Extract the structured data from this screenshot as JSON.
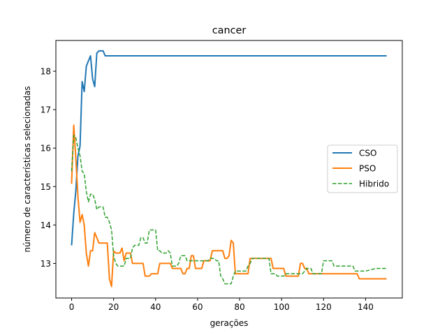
{
  "chart_data": {
    "type": "line",
    "title": "cancer",
    "xlabel": "gerações",
    "ylabel": "número de características selecionadas",
    "xlim": [
      -7.5,
      157.5
    ],
    "ylim": [
      12.1,
      18.8
    ],
    "xticks": [
      0,
      20,
      40,
      60,
      80,
      100,
      120,
      140
    ],
    "yticks": [
      13,
      14,
      15,
      16,
      17,
      18
    ],
    "grid": false,
    "legend_position": "center-right",
    "series": [
      {
        "name": "CSO",
        "color": "#1f77b4",
        "style": "solid",
        "x": [
          0,
          1,
          2,
          3,
          4,
          5,
          6,
          7,
          8,
          9,
          10,
          11,
          12,
          13,
          14,
          15,
          16,
          20,
          40,
          60,
          80,
          100,
          120,
          140,
          150
        ],
        "y": [
          13.47,
          14.3,
          14.9,
          15.8,
          16.05,
          17.73,
          17.47,
          18.13,
          18.27,
          18.4,
          17.8,
          17.6,
          18.47,
          18.53,
          18.53,
          18.53,
          18.4,
          18.4,
          18.4,
          18.4,
          18.4,
          18.4,
          18.4,
          18.4,
          18.4
        ]
      },
      {
        "name": "PSO",
        "color": "#ff7f0e",
        "style": "solid",
        "x": [
          0,
          1,
          2,
          3,
          4,
          5,
          6,
          7,
          8,
          9,
          10,
          11,
          12,
          13,
          14,
          15,
          16,
          17,
          18,
          19,
          20,
          21,
          22,
          23,
          24,
          25,
          26,
          27,
          28,
          29,
          30,
          31,
          32,
          33,
          34,
          35,
          36,
          37,
          38,
          39,
          40,
          41,
          42,
          43,
          44,
          45,
          46,
          47,
          48,
          49,
          50,
          51,
          52,
          53,
          54,
          55,
          56,
          57,
          58,
          59,
          60,
          61,
          62,
          63,
          64,
          65,
          66,
          67,
          68,
          69,
          70,
          71,
          72,
          73,
          74,
          75,
          76,
          77,
          78,
          79,
          80,
          81,
          82,
          83,
          84,
          85,
          86,
          87,
          88,
          89,
          90,
          91,
          92,
          93,
          94,
          95,
          96,
          97,
          98,
          99,
          100,
          101,
          102,
          103,
          104,
          105,
          106,
          107,
          108,
          109,
          110,
          111,
          112,
          113,
          114,
          115,
          116,
          117,
          118,
          119,
          120,
          125,
          130,
          135,
          136,
          137,
          140,
          145,
          150
        ],
        "y": [
          15.07,
          16.6,
          15.73,
          14.73,
          14.07,
          14.27,
          14.0,
          13.27,
          12.93,
          13.33,
          13.33,
          13.8,
          13.67,
          13.53,
          13.53,
          13.53,
          13.53,
          13.53,
          12.6,
          12.4,
          13.33,
          13.27,
          13.27,
          13.27,
          13.4,
          13.07,
          13.27,
          13.27,
          13.27,
          13.0,
          13.0,
          13.0,
          13.0,
          13.0,
          13.0,
          12.67,
          12.67,
          12.67,
          12.73,
          12.73,
          12.73,
          12.73,
          13.0,
          13.0,
          13.0,
          13.0,
          13.0,
          13.0,
          12.87,
          12.87,
          12.87,
          12.87,
          12.87,
          12.73,
          12.73,
          12.87,
          12.87,
          13.2,
          13.2,
          12.87,
          12.87,
          12.87,
          12.87,
          13.07,
          13.07,
          13.07,
          13.07,
          13.33,
          13.33,
          13.33,
          13.33,
          13.33,
          13.33,
          13.13,
          13.13,
          13.2,
          13.6,
          13.53,
          12.73,
          12.73,
          12.73,
          12.73,
          12.73,
          12.73,
          12.73,
          13.13,
          13.13,
          13.13,
          13.13,
          13.13,
          13.13,
          13.13,
          13.13,
          13.13,
          13.13,
          13.13,
          12.87,
          12.87,
          12.87,
          12.87,
          12.87,
          12.87,
          12.67,
          12.67,
          12.67,
          12.67,
          12.67,
          12.67,
          12.67,
          13.0,
          13.0,
          12.87,
          12.87,
          12.73,
          12.73,
          12.73,
          12.73,
          12.73,
          12.73,
          12.73,
          12.73,
          12.73,
          12.73,
          12.73,
          12.73,
          12.6,
          12.6,
          12.6,
          12.6
        ]
      },
      {
        "name": "Hibrido",
        "color": "#2ca02c",
        "style": "dashed",
        "x": [
          0,
          1,
          2,
          3,
          4,
          5,
          6,
          7,
          8,
          9,
          10,
          11,
          12,
          13,
          14,
          15,
          16,
          17,
          18,
          19,
          20,
          21,
          22,
          23,
          24,
          25,
          26,
          27,
          28,
          29,
          30,
          31,
          32,
          33,
          34,
          35,
          36,
          37,
          38,
          39,
          40,
          41,
          42,
          43,
          44,
          45,
          46,
          47,
          48,
          49,
          50,
          51,
          52,
          53,
          54,
          55,
          56,
          57,
          58,
          59,
          60,
          61,
          62,
          63,
          64,
          65,
          66,
          67,
          68,
          69,
          70,
          71,
          72,
          73,
          74,
          75,
          76,
          77,
          78,
          79,
          80,
          81,
          82,
          83,
          84,
          85,
          86,
          87,
          88,
          89,
          90,
          91,
          92,
          93,
          94,
          95,
          96,
          97,
          98,
          99,
          100,
          101,
          102,
          103,
          104,
          105,
          106,
          107,
          108,
          109,
          110,
          111,
          112,
          113,
          114,
          115,
          116,
          117,
          118,
          119,
          120,
          121,
          122,
          123,
          124,
          125,
          126,
          127,
          128,
          129,
          130,
          131,
          132,
          133,
          134,
          135,
          136,
          137,
          138,
          139,
          140,
          145,
          150
        ],
        "y": [
          15.4,
          16.33,
          16.27,
          16.0,
          15.8,
          15.4,
          15.33,
          14.87,
          14.6,
          14.8,
          14.8,
          14.67,
          14.4,
          14.47,
          14.47,
          14.47,
          14.2,
          14.2,
          14.07,
          13.87,
          13.2,
          13.0,
          12.93,
          12.93,
          12.93,
          12.93,
          13.13,
          13.13,
          13.13,
          13.4,
          13.47,
          13.47,
          13.47,
          13.67,
          13.67,
          13.53,
          13.53,
          13.87,
          13.87,
          13.87,
          13.87,
          13.33,
          13.33,
          13.27,
          13.27,
          13.27,
          13.33,
          13.27,
          12.93,
          12.93,
          12.93,
          13.0,
          13.2,
          13.2,
          13.2,
          13.07,
          13.07,
          13.07,
          13.07,
          13.07,
          13.07,
          13.07,
          13.07,
          13.07,
          13.07,
          13.07,
          13.13,
          13.13,
          13.13,
          13.07,
          13.07,
          12.67,
          12.6,
          12.47,
          12.47,
          12.47,
          12.47,
          12.67,
          12.8,
          12.8,
          12.8,
          12.8,
          12.8,
          12.8,
          12.93,
          13.0,
          13.13,
          13.13,
          13.13,
          13.13,
          13.13,
          13.13,
          13.13,
          13.13,
          13.13,
          12.73,
          12.73,
          12.73,
          12.67,
          12.67,
          12.67,
          12.67,
          12.73,
          12.73,
          12.73,
          12.73,
          12.73,
          12.73,
          12.73,
          12.73,
          12.73,
          12.8,
          12.87,
          12.87,
          12.87,
          12.73,
          12.73,
          12.73,
          12.73,
          12.73,
          13.07,
          13.07,
          13.07,
          13.07,
          13.07,
          12.93,
          12.93,
          12.93,
          12.93,
          12.93,
          12.93,
          12.93,
          12.93,
          12.93,
          12.93,
          12.8,
          12.8,
          12.8,
          12.8,
          12.8,
          12.8,
          12.87,
          12.87
        ]
      }
    ]
  }
}
